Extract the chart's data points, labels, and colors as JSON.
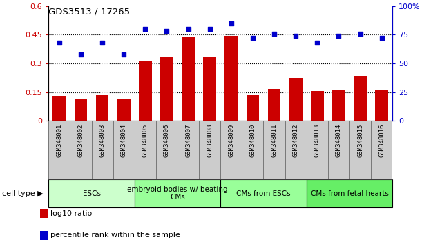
{
  "title": "GDS3513 / 17265",
  "samples": [
    "GSM348001",
    "GSM348002",
    "GSM348003",
    "GSM348004",
    "GSM348005",
    "GSM348006",
    "GSM348007",
    "GSM348008",
    "GSM348009",
    "GSM348010",
    "GSM348011",
    "GSM348012",
    "GSM348013",
    "GSM348014",
    "GSM348015",
    "GSM348016"
  ],
  "bar_values": [
    0.13,
    0.115,
    0.135,
    0.115,
    0.315,
    0.335,
    0.44,
    0.335,
    0.445,
    0.135,
    0.165,
    0.225,
    0.155,
    0.16,
    0.235,
    0.16
  ],
  "scatter_values": [
    68,
    58,
    68,
    58,
    80,
    78,
    80,
    80,
    85,
    72,
    76,
    74,
    68,
    74,
    76,
    72
  ],
  "bar_color": "#cc0000",
  "scatter_color": "#0000cc",
  "ylim_left": [
    0,
    0.6
  ],
  "ylim_right": [
    0,
    100
  ],
  "yticks_left": [
    0,
    0.15,
    0.3,
    0.45,
    0.6
  ],
  "yticks_right": [
    0,
    25,
    50,
    75,
    100
  ],
  "ytick_labels_left": [
    "0",
    "0.15",
    "0.3",
    "0.45",
    "0.6"
  ],
  "ytick_labels_right": [
    "0",
    "25",
    "50",
    "75",
    "100%"
  ],
  "cell_type_groups": [
    {
      "label": "ESCs",
      "start": 0,
      "end": 4,
      "color": "#ccffcc"
    },
    {
      "label": "embryoid bodies w/ beating\nCMs",
      "start": 4,
      "end": 8,
      "color": "#99ff99"
    },
    {
      "label": "CMs from ESCs",
      "start": 8,
      "end": 12,
      "color": "#99ff99"
    },
    {
      "label": "CMs from fetal hearts",
      "start": 12,
      "end": 16,
      "color": "#66ee66"
    }
  ],
  "cell_type_label": "cell type",
  "legend_bar_label": "log10 ratio",
  "legend_scatter_label": "percentile rank within the sample",
  "background_color": "#ffffff",
  "plot_bg_color": "#ffffff",
  "dotted_line_color": "#000000",
  "sample_bg_color": "#cccccc",
  "border_color": "#555555"
}
